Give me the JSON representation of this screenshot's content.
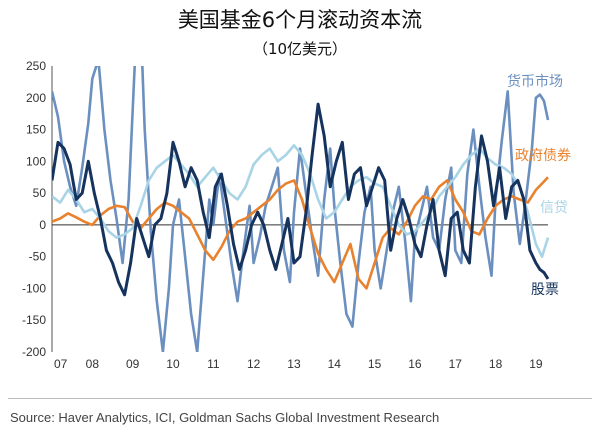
{
  "title": "美国基金6个月滚动资本流",
  "subtitle": "（10亿美元）",
  "source": "Source: Haver Analytics, ICI, Goldman Sachs Global Investment Research",
  "chart_data": {
    "type": "line",
    "title": "美国基金6个月滚动资本流",
    "subtitle": "（10亿美元）",
    "xlabel": "",
    "ylabel": "",
    "xlim": [
      2007.0,
      2019.3
    ],
    "ylim": [
      -200,
      250
    ],
    "x_ticks": [
      "07",
      "08",
      "09",
      "10",
      "11",
      "12",
      "13",
      "14",
      "15",
      "16",
      "17",
      "18",
      "19"
    ],
    "y_ticks": [
      250,
      200,
      150,
      100,
      50,
      0,
      -50,
      -100,
      -150,
      -200
    ],
    "grid": false,
    "legend": "inline-right",
    "series": [
      {
        "name": "货币市场",
        "color": "#6b8fbf",
        "x": [
          2007.0,
          2007.15,
          2007.3,
          2007.45,
          2007.6,
          2007.75,
          2007.9,
          2008.0,
          2008.15,
          2008.3,
          2008.45,
          2008.6,
          2008.75,
          2008.9,
          2009.05,
          2009.2,
          2009.3,
          2009.45,
          2009.6,
          2009.75,
          2009.9,
          2010.0,
          2010.15,
          2010.3,
          2010.45,
          2010.6,
          2010.75,
          2010.9,
          2011.0,
          2011.15,
          2011.3,
          2011.45,
          2011.6,
          2011.75,
          2011.9,
          2012.0,
          2012.15,
          2012.3,
          2012.45,
          2012.6,
          2012.75,
          2012.9,
          2013.0,
          2013.15,
          2013.3,
          2013.45,
          2013.6,
          2013.75,
          2013.9,
          2014.0,
          2014.15,
          2014.3,
          2014.45,
          2014.6,
          2014.75,
          2014.9,
          2015.0,
          2015.15,
          2015.3,
          2015.45,
          2015.6,
          2015.75,
          2015.9,
          2016.0,
          2016.15,
          2016.3,
          2016.45,
          2016.6,
          2016.75,
          2016.9,
          2017.0,
          2017.15,
          2017.3,
          2017.45,
          2017.6,
          2017.75,
          2017.9,
          2018.0,
          2018.15,
          2018.3,
          2018.45,
          2018.6,
          2018.75,
          2018.9,
          2019.0,
          2019.1,
          2019.2,
          2019.3
        ],
        "values": [
          210,
          170,
          100,
          60,
          30,
          90,
          160,
          230,
          260,
          150,
          70,
          10,
          -60,
          40,
          250,
          320,
          150,
          -10,
          -120,
          -200,
          -100,
          0,
          40,
          -50,
          -140,
          -200,
          -80,
          40,
          0,
          80,
          10,
          -60,
          -120,
          -40,
          30,
          -60,
          -20,
          30,
          60,
          90,
          -40,
          -90,
          20,
          120,
          50,
          -20,
          -80,
          40,
          120,
          30,
          -60,
          -140,
          -160,
          -60,
          20,
          60,
          -40,
          -100,
          -40,
          20,
          60,
          -20,
          -120,
          -20,
          20,
          60,
          -20,
          -40,
          40,
          90,
          -40,
          -60,
          80,
          150,
          60,
          -20,
          -80,
          40,
          130,
          210,
          50,
          -30,
          40,
          120,
          200,
          205,
          195,
          165
        ]
      },
      {
        "name": "政府债券",
        "color": "#e8822e",
        "x": [
          2007.0,
          2007.2,
          2007.4,
          2007.6,
          2007.8,
          2008.0,
          2008.2,
          2008.4,
          2008.6,
          2008.8,
          2009.0,
          2009.2,
          2009.4,
          2009.6,
          2009.8,
          2010.0,
          2010.2,
          2010.4,
          2010.6,
          2010.8,
          2011.0,
          2011.2,
          2011.4,
          2011.6,
          2011.8,
          2012.0,
          2012.2,
          2012.4,
          2012.6,
          2012.8,
          2013.0,
          2013.2,
          2013.4,
          2013.6,
          2013.8,
          2014.0,
          2014.2,
          2014.4,
          2014.6,
          2014.8,
          2015.0,
          2015.2,
          2015.4,
          2015.6,
          2015.8,
          2016.0,
          2016.2,
          2016.4,
          2016.6,
          2016.8,
          2017.0,
          2017.2,
          2017.4,
          2017.6,
          2017.8,
          2018.0,
          2018.2,
          2018.4,
          2018.6,
          2018.8,
          2019.0,
          2019.15,
          2019.3
        ],
        "values": [
          5,
          10,
          18,
          12,
          5,
          0,
          15,
          25,
          30,
          28,
          5,
          -5,
          10,
          25,
          35,
          30,
          20,
          10,
          -15,
          -40,
          -55,
          -35,
          -10,
          5,
          10,
          20,
          30,
          40,
          55,
          65,
          70,
          40,
          -5,
          -45,
          -70,
          -90,
          -60,
          -30,
          -85,
          -100,
          -60,
          -20,
          -5,
          -15,
          5,
          30,
          45,
          40,
          60,
          70,
          40,
          20,
          -10,
          -15,
          10,
          30,
          40,
          45,
          40,
          35,
          55,
          65,
          75
        ]
      },
      {
        "name": "信贷",
        "color": "#a8d4e6",
        "x": [
          2007.0,
          2007.2,
          2007.4,
          2007.6,
          2007.8,
          2008.0,
          2008.2,
          2008.4,
          2008.6,
          2008.8,
          2009.0,
          2009.2,
          2009.4,
          2009.6,
          2009.8,
          2010.0,
          2010.2,
          2010.4,
          2010.6,
          2010.8,
          2011.0,
          2011.2,
          2011.4,
          2011.6,
          2011.8,
          2012.0,
          2012.2,
          2012.4,
          2012.6,
          2012.8,
          2013.0,
          2013.2,
          2013.4,
          2013.6,
          2013.8,
          2014.0,
          2014.2,
          2014.4,
          2014.6,
          2014.8,
          2015.0,
          2015.2,
          2015.4,
          2015.6,
          2015.8,
          2016.0,
          2016.2,
          2016.4,
          2016.6,
          2016.8,
          2017.0,
          2017.2,
          2017.4,
          2017.6,
          2017.8,
          2018.0,
          2018.2,
          2018.4,
          2018.6,
          2018.8,
          2019.0,
          2019.15,
          2019.3
        ],
        "values": [
          45,
          35,
          55,
          40,
          20,
          25,
          10,
          -10,
          -20,
          -15,
          -5,
          30,
          70,
          90,
          100,
          110,
          95,
          80,
          60,
          75,
          90,
          70,
          50,
          40,
          60,
          95,
          110,
          120,
          100,
          110,
          125,
          110,
          80,
          40,
          10,
          20,
          40,
          60,
          70,
          75,
          65,
          60,
          30,
          0,
          -15,
          -10,
          5,
          20,
          45,
          60,
          75,
          95,
          110,
          120,
          105,
          95,
          90,
          80,
          60,
          20,
          -30,
          -50,
          -20
        ]
      },
      {
        "name": "股票",
        "color": "#16335e",
        "x": [
          2007.0,
          2007.15,
          2007.3,
          2007.45,
          2007.6,
          2007.75,
          2007.9,
          2008.05,
          2008.2,
          2008.35,
          2008.5,
          2008.65,
          2008.8,
          2008.95,
          2009.1,
          2009.25,
          2009.4,
          2009.55,
          2009.7,
          2009.85,
          2010.0,
          2010.15,
          2010.3,
          2010.45,
          2010.6,
          2010.75,
          2010.9,
          2011.05,
          2011.2,
          2011.35,
          2011.5,
          2011.65,
          2011.8,
          2011.95,
          2012.1,
          2012.25,
          2012.4,
          2012.55,
          2012.7,
          2012.85,
          2013.0,
          2013.15,
          2013.3,
          2013.45,
          2013.6,
          2013.75,
          2013.9,
          2014.05,
          2014.2,
          2014.35,
          2014.5,
          2014.65,
          2014.8,
          2014.95,
          2015.1,
          2015.25,
          2015.4,
          2015.55,
          2015.7,
          2015.85,
          2016.0,
          2016.15,
          2016.3,
          2016.45,
          2016.6,
          2016.75,
          2016.9,
          2017.05,
          2017.2,
          2017.35,
          2017.5,
          2017.65,
          2017.8,
          2017.95,
          2018.1,
          2018.25,
          2018.4,
          2018.55,
          2018.7,
          2018.85,
          2019.0,
          2019.1,
          2019.2,
          2019.3
        ],
        "values": [
          70,
          130,
          120,
          95,
          40,
          50,
          100,
          50,
          10,
          -40,
          -60,
          -90,
          -110,
          -60,
          10,
          -20,
          -50,
          0,
          10,
          50,
          130,
          100,
          60,
          90,
          70,
          20,
          -20,
          60,
          80,
          30,
          -30,
          -70,
          -40,
          0,
          20,
          0,
          -40,
          -70,
          -30,
          10,
          -60,
          -50,
          20,
          110,
          190,
          140,
          60,
          100,
          130,
          40,
          80,
          90,
          30,
          60,
          90,
          70,
          -40,
          10,
          40,
          10,
          -30,
          -50,
          0,
          40,
          -40,
          -80,
          10,
          20,
          -40,
          -60,
          60,
          140,
          100,
          30,
          90,
          10,
          60,
          70,
          40,
          -40,
          -60,
          -70,
          -75,
          -85
        ]
      }
    ]
  }
}
